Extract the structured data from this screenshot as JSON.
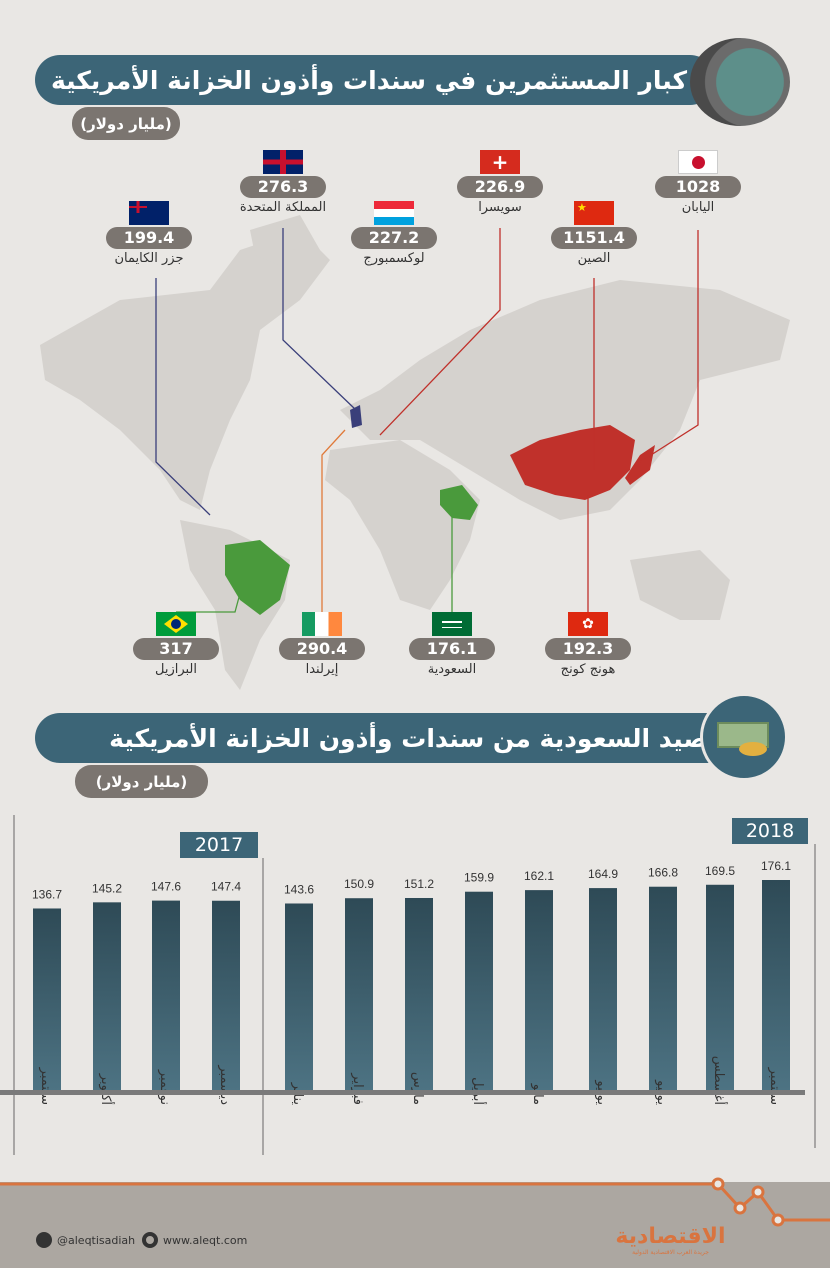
{
  "section1": {
    "title": "كبار المستثمرين في سندات وأذون الخزانة الأمريكية",
    "unit": "(مليار دولار)"
  },
  "countries": [
    {
      "name": "اليابان",
      "value": "1028",
      "flag": "japan"
    },
    {
      "name": "سويسرا",
      "value": "226.9",
      "flag": "switzerland"
    },
    {
      "name": "المملكة المتحدة",
      "value": "276.3",
      "flag": "uk"
    },
    {
      "name": "الصين",
      "value": "1151.4",
      "flag": "china"
    },
    {
      "name": "لوكسمبورج",
      "value": "227.2",
      "flag": "luxembourg"
    },
    {
      "name": "جزر الكايمان",
      "value": "199.4",
      "flag": "cayman"
    },
    {
      "name": "البرازيل",
      "value": "317",
      "flag": "brazil"
    },
    {
      "name": "إيرلندا",
      "value": "290.4",
      "flag": "ireland"
    },
    {
      "name": "السعودية",
      "value": "176.1",
      "flag": "saudi"
    },
    {
      "name": "هونج كونج",
      "value": "192.3",
      "flag": "hongkong"
    }
  ],
  "section2": {
    "title": "رصيد السعودية من سندات وأذون الخزانة الأمريكية",
    "unit": "(مليار دولار)"
  },
  "chart_data": {
    "type": "bar",
    "title": "رصيد السعودية من سندات وأذون الخزانة الأمريكية",
    "ylabel": "مليار دولار",
    "groups": [
      "2017",
      "2018"
    ],
    "categories": [
      "سبتمبر",
      "أكتوبر",
      "نوفمبر",
      "ديسمبر",
      "يناير",
      "فبراير",
      "مارس",
      "أبريل",
      "مايو",
      "يونيو",
      "يوليو",
      "أغسطس",
      "سبتمبر"
    ],
    "years": [
      "2017",
      "2017",
      "2017",
      "2017",
      "2018",
      "2018",
      "2018",
      "2018",
      "2018",
      "2018",
      "2018",
      "2018",
      "2018"
    ],
    "values": [
      136.7,
      145.2,
      147.6,
      147.4,
      143.6,
      150.9,
      151.2,
      159.9,
      162.1,
      164.9,
      166.8,
      169.5,
      176.1
    ],
    "ylim": [
      0,
      180
    ]
  },
  "footer": {
    "twitter": "@aleqtisadiah",
    "website": "www.aleqt.com",
    "brand": "الاقتصادية",
    "tagline": "جريدة العرب الاقتصادية الدولية"
  },
  "colors": {
    "primary": "#3c6577",
    "pill": "#7b7570",
    "china": "#c0312b",
    "uk_line": "#3a3f7a",
    "saudi": "#4a9a3c",
    "accent": "#d9743f"
  }
}
